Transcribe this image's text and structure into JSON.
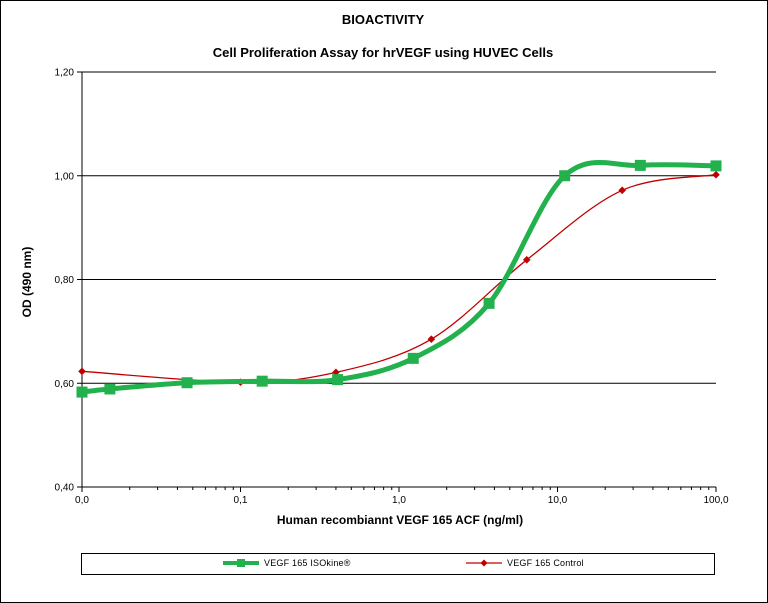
{
  "chart_data": {
    "type": "line",
    "title": "BIOACTIVITY",
    "subtitle": "Cell Proliferation Assay for hrVEGF using HUVEC Cells",
    "xlabel": "Human recombiannt VEGF 165 ACF (ng/ml)",
    "ylabel": "OD (490 nm)",
    "x_scale": "log",
    "xlim": [
      0.01,
      100
    ],
    "ylim": [
      0.4,
      1.2
    ],
    "x_ticks": [
      "0,0",
      "0,1",
      "1,0",
      "10,0",
      "100,0"
    ],
    "y_ticks": [
      "0,40",
      "0,60",
      "0,80",
      "1,00",
      "1,20"
    ],
    "grid": "horizontal",
    "legend_position": "bottom",
    "series": [
      {
        "name": "VEGF 165 ISOkine®",
        "color": "#22b14c",
        "marker": "square",
        "x": [
          0.01,
          0.015,
          0.046,
          0.137,
          0.41,
          1.23,
          3.7,
          11.1,
          33.3,
          100
        ],
        "y": [
          0.583,
          0.589,
          0.601,
          0.604,
          0.607,
          0.648,
          0.754,
          1.0,
          1.02,
          1.019
        ]
      },
      {
        "name": "VEGF 165 Control",
        "color": "#c00000",
        "marker": "diamond",
        "x": [
          0.01,
          0.1,
          0.4,
          1.6,
          6.4,
          25.6,
          100
        ],
        "y": [
          0.623,
          0.602,
          0.621,
          0.685,
          0.838,
          0.972,
          1.002
        ]
      }
    ]
  }
}
